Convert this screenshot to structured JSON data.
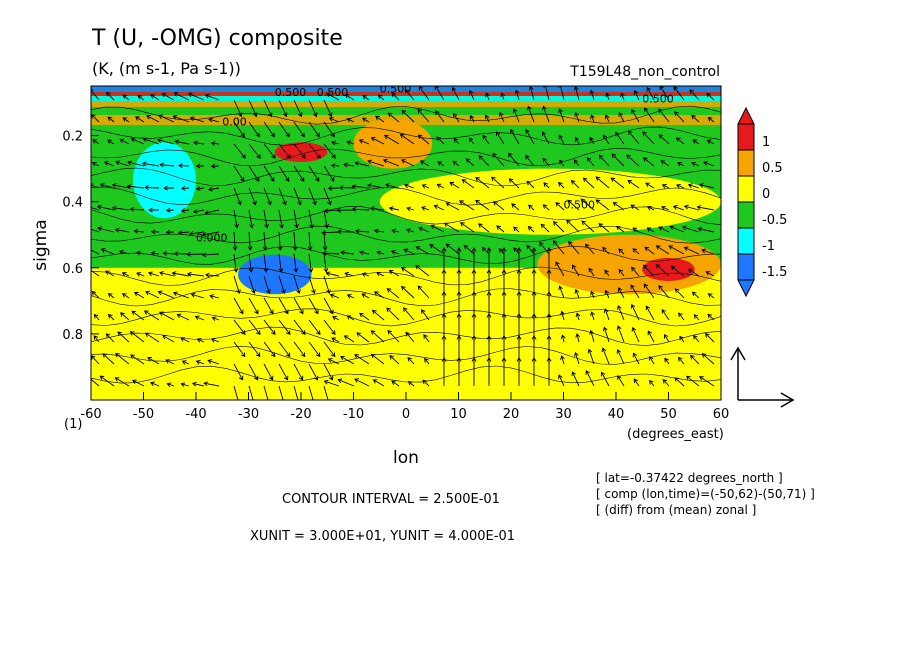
{
  "chart_data": {
    "type": "heatmap",
    "title": "T (U, -OMG) composite",
    "subtitle": "(K, (m s-1, Pa s-1))",
    "run_label": "T159L48_non_control",
    "xlabel": "lon",
    "x_units": "(degrees_east)",
    "ylabel": "sigma",
    "y_corner_label": "(1)",
    "x_range": [
      -60,
      60
    ],
    "y_range": [
      0.05,
      1.0
    ],
    "y_reversed": true,
    "x_ticks": [
      "-60",
      "-50",
      "-40",
      "-30",
      "-20",
      "-10",
      "0",
      "10",
      "20",
      "30",
      "40",
      "50",
      "60"
    ],
    "y_ticks": [
      "0.2",
      "0.4",
      "0.6",
      "0.8"
    ],
    "colorbar": {
      "levels": [
        "1",
        "0.5",
        "0",
        "-0.5",
        "-1",
        "-1.5"
      ],
      "colors": [
        "#e8191c",
        "#f5a400",
        "#ffff00",
        "#1ec81e",
        "#00ffff",
        "#1e78ff"
      ]
    },
    "contour_labels": [
      "0.500",
      "0.500",
      "0.00",
      "0.000",
      "0.500",
      "0.500",
      "0.500"
    ],
    "regions": [
      {
        "value": 0.25,
        "lon": [
          -60,
          60
        ],
        "sigma": [
          0.6,
          1.0
        ]
      },
      {
        "value": -0.25,
        "lon": [
          -60,
          -5
        ],
        "sigma": [
          0.35,
          0.6
        ]
      },
      {
        "value": -0.75,
        "lon": [
          -52,
          -40
        ],
        "sigma": [
          0.22,
          0.45
        ]
      },
      {
        "value": -1.25,
        "lon": [
          -32,
          -18
        ],
        "sigma": [
          0.56,
          0.68
        ]
      },
      {
        "value": 0.75,
        "lon": [
          -10,
          5
        ],
        "sigma": [
          0.15,
          0.3
        ]
      },
      {
        "value": 1.25,
        "lon": [
          -25,
          -15
        ],
        "sigma": [
          0.22,
          0.28
        ]
      },
      {
        "value": 0.75,
        "lon": [
          25,
          60
        ],
        "sigma": [
          0.5,
          0.68
        ]
      },
      {
        "value": 1.25,
        "lon": [
          45,
          55
        ],
        "sigma": [
          0.57,
          0.64
        ]
      },
      {
        "value": 0.25,
        "lon": [
          -5,
          60
        ],
        "sigma": [
          0.3,
          0.5
        ]
      }
    ],
    "vector_units": {
      "xunit": "3.000E+01",
      "yunit": "4.000E-01"
    }
  },
  "footer": {
    "contour_interval": "CONTOUR INTERVAL = 2.500E-01",
    "units": "XUNIT = 3.000E+01, YUNIT = 4.000E-01",
    "info1": "[ lat=-0.37422 degrees_north ]",
    "info2": "[ comp (lon,time)=(-50,62)-(50,71) ]",
    "info3": "[ (diff) from (mean) zonal ]"
  }
}
